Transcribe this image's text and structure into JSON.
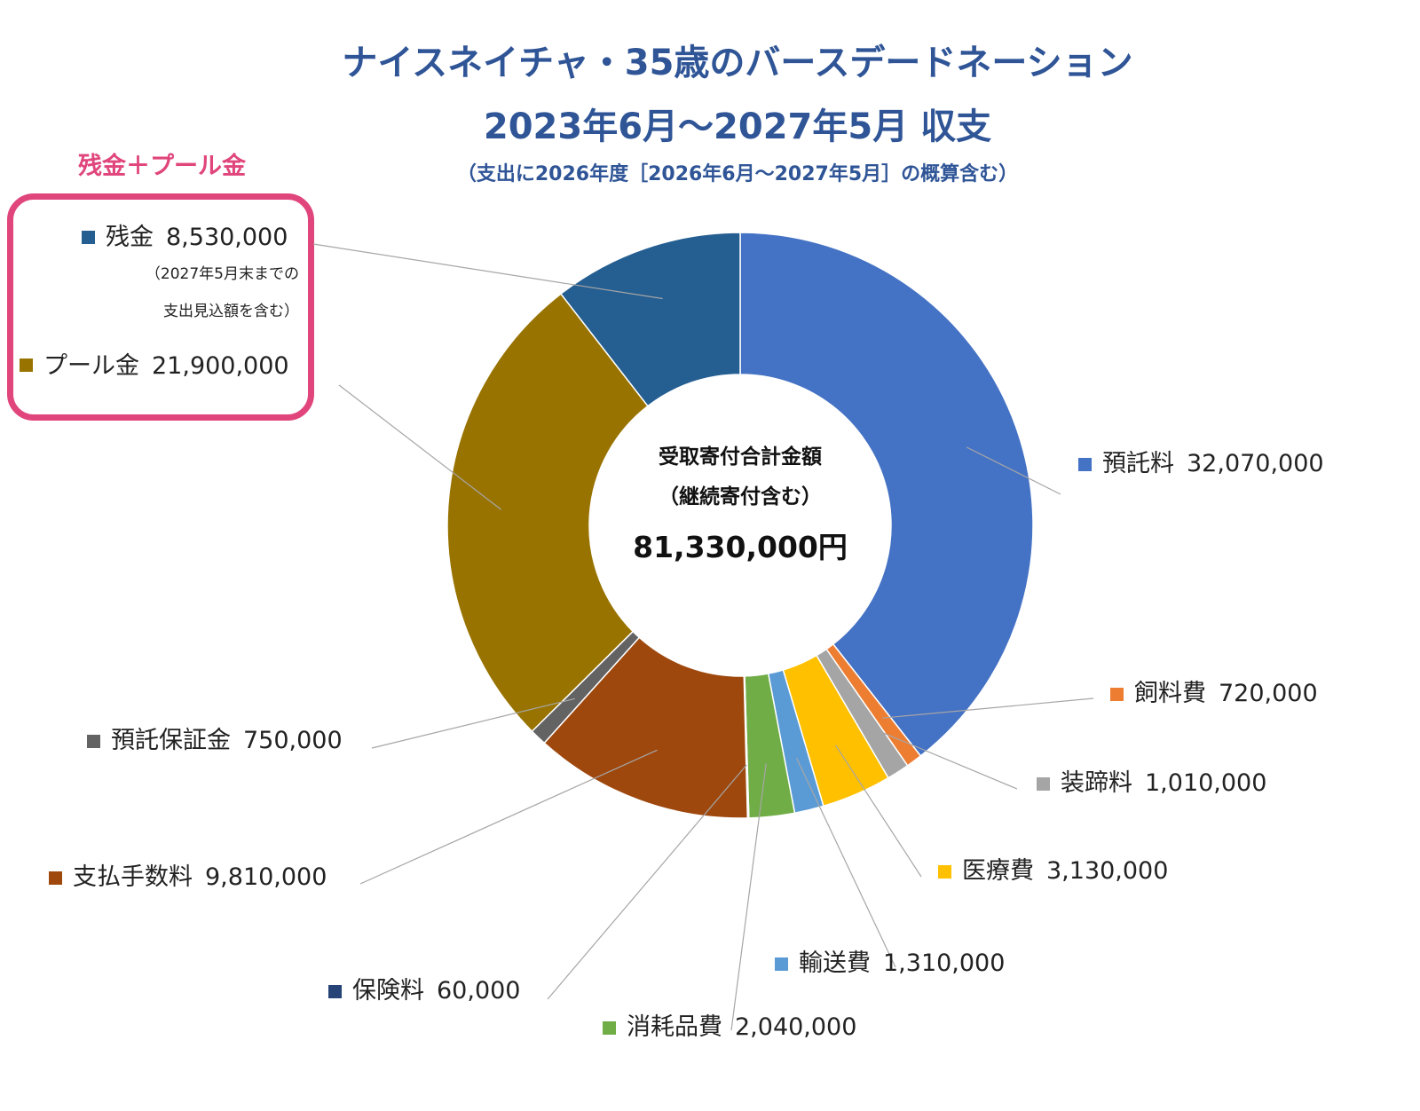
{
  "title_line1": "ナイスネイチャ・35歳のバースデードネーション",
  "title_line2": "2023年6月～2027年5月 収支",
  "subtitle": "（支出に2026年度［2026年6月～2027年5月］の概算含む）",
  "pool_heading": "残金＋プール金",
  "center": {
    "line1": "受取寄付合計金額",
    "line2": "（継続寄付含む）",
    "total": "81,330,000円"
  },
  "remaining_note_line1": "（2027年5月末までの",
  "remaining_note_line2": "支出見込額を含む）",
  "chart_data": {
    "type": "pie",
    "donut": true,
    "start": "top",
    "direction": "clockwise",
    "slices": [
      {
        "label": "預託料",
        "value": 32070000,
        "value_label": "32,070,000",
        "color": "#4472c4"
      },
      {
        "label": "飼料費",
        "value": 720000,
        "value_label": "720,000",
        "color": "#ed7d31"
      },
      {
        "label": "装蹄料",
        "value": 1010000,
        "value_label": "1,010,000",
        "color": "#a5a5a5"
      },
      {
        "label": "医療費",
        "value": 3130000,
        "value_label": "3,130,000",
        "color": "#ffc000"
      },
      {
        "label": "輸送費",
        "value": 1310000,
        "value_label": "1,310,000",
        "color": "#5b9bd5"
      },
      {
        "label": "消耗品費",
        "value": 2040000,
        "value_label": "2,040,000",
        "color": "#70ad47"
      },
      {
        "label": "保険料",
        "value": 60000,
        "value_label": "60,000",
        "color": "#264478"
      },
      {
        "label": "支払手数料",
        "value": 9810000,
        "value_label": "9,810,000",
        "color": "#9e480e"
      },
      {
        "label": "預託保証金",
        "value": 750000,
        "value_label": "750,000",
        "color": "#636363"
      },
      {
        "label": "プール金",
        "value": 21900000,
        "value_label": "21,900,000",
        "color": "#997300"
      },
      {
        "label": "残金",
        "value": 8530000,
        "value_label": "8,530,000",
        "color": "#255e91"
      }
    ]
  }
}
